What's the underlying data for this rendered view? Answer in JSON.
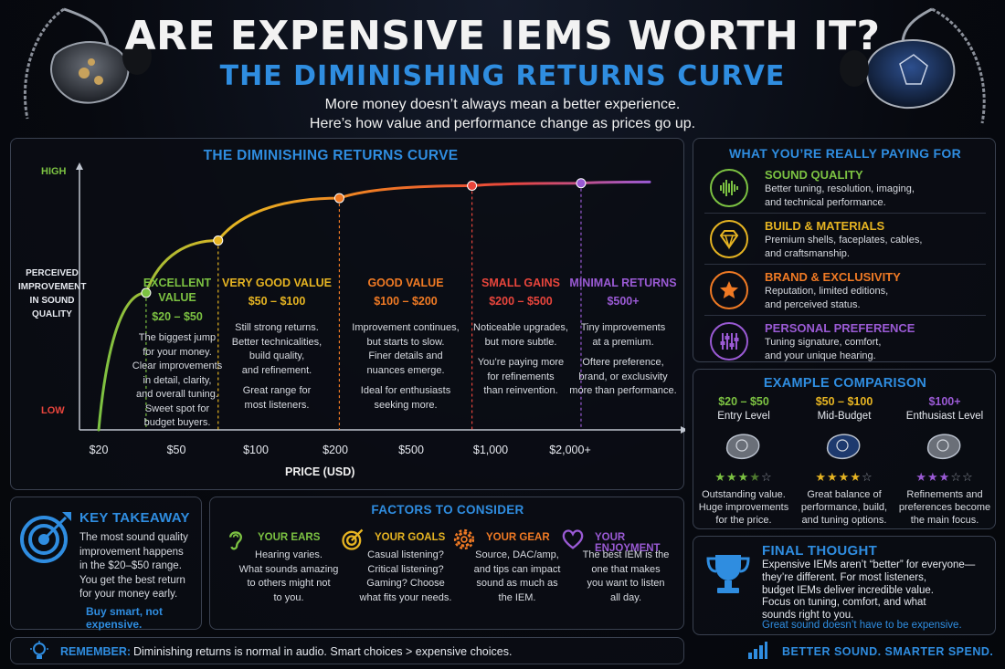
{
  "header": {
    "title": "ARE EXPENSIVE IEMS WORTH IT?",
    "subtitle": "THE DIMINISHING RETURNS CURVE",
    "intro_line1": "More money doesn’t always mean a better experience.",
    "intro_line2": "Here’s how value and performance change as prices go up."
  },
  "chart_data": {
    "type": "line",
    "title": "THE DIMINISHING RETURNS CURVE",
    "xlabel": "PRICE (USD)",
    "ylabel": "PERCEIVED IMPROVEMENT IN SOUND QUALITY",
    "y_axis_labels": {
      "high": "HIGH",
      "low": "LOW"
    },
    "x_tick_labels": [
      "$20",
      "$50",
      "$100",
      "$200",
      "$500",
      "$1,000",
      "$2,000+"
    ],
    "x_scale": "log",
    "series": [
      {
        "points": [
          {
            "x": 20,
            "y": 0
          },
          {
            "x": 35,
            "y": 0.55
          },
          {
            "x": 72,
            "y": 0.76
          },
          {
            "x": 210,
            "y": 0.93
          },
          {
            "x": 850,
            "y": 0.98
          },
          {
            "x": 2200,
            "y": 0.99
          },
          {
            "x": 4000,
            "y": 0.995
          }
        ]
      }
    ],
    "markers": [
      {
        "x": 35,
        "y": 0.55,
        "color": "#7cc242"
      },
      {
        "x": 72,
        "y": 0.76,
        "color": "#e6b422"
      },
      {
        "x": 210,
        "y": 0.93,
        "color": "#f07a24"
      },
      {
        "x": 850,
        "y": 0.98,
        "color": "#e8453c"
      },
      {
        "x": 2200,
        "y": 0.99,
        "color": "#9a5ad4"
      }
    ],
    "segments": [
      {
        "name": "EXCELLENT VALUE",
        "range": "$20 – $50",
        "color": "#7cc242",
        "lines": [
          "The biggest jump",
          "for your money.",
          "Clear improvements",
          "in detail, clarity,",
          "and overall tuning.",
          "Sweet spot for",
          "budget buyers."
        ]
      },
      {
        "name": "VERY GOOD VALUE",
        "range": "$50 – $100",
        "color": "#e6b422",
        "lines": [
          "Still strong returns.",
          "Better technicalities,",
          "build quality,",
          "and refinement.",
          "",
          "Great range for",
          "most listeners."
        ]
      },
      {
        "name": "GOOD VALUE",
        "range": "$100 – $200",
        "color": "#f07a24",
        "lines": [
          "Improvement continues,",
          "but starts to slow.",
          "Finer details and",
          "nuances emerge.",
          "",
          "Ideal for enthusiasts",
          "seeking more."
        ]
      },
      {
        "name": "SMALL GAINS",
        "range": "$200 – $500",
        "color": "#e8453c",
        "lines": [
          "Noticeable upgrades,",
          "but more subtle.",
          "",
          "You’re paying more",
          "for refinements",
          "than reinvention."
        ]
      },
      {
        "name": "MINIMAL RETURNS",
        "range": "$500+",
        "color": "#9a5ad4",
        "lines": [
          "Tiny improvements",
          "at a premium.",
          "",
          "Oftere preference,",
          "brand, or exclusivity",
          "more than performance."
        ]
      }
    ]
  },
  "paying_for": {
    "heading": "WHAT YOU’RE REALLY PAYING FOR",
    "items": [
      {
        "title": "SOUND QUALITY",
        "color": "#7cc242",
        "icon": "soundwave-icon",
        "line1": "Better tuning, resolution, imaging,",
        "line2": "and technical performance."
      },
      {
        "title": "BUILD & MATERIALS",
        "color": "#e6b422",
        "icon": "diamond-icon",
        "line1": "Premium shells, faceplates, cables,",
        "line2": "and craftsmanship."
      },
      {
        "title": "BRAND & EXCLUSIVITY",
        "color": "#f07a24",
        "icon": "star-icon",
        "line1": "Reputation, limited editions,",
        "line2": "and perceived status."
      },
      {
        "title": "PERSONAL PREFERENCE",
        "color": "#9a5ad4",
        "icon": "sliders-icon",
        "line1": "Tuning signature, comfort,",
        "line2": "and your unique hearing."
      }
    ]
  },
  "comparison": {
    "heading": "EXAMPLE COMPARISON",
    "items": [
      {
        "price": "$20 – $50",
        "level": "Entry Level",
        "color": "#7cc242",
        "rating": 3.5,
        "line1": "Outstanding value.",
        "line2": "Huge improvements",
        "line3": "for the price."
      },
      {
        "price": "$50 – $100",
        "level": "Mid-Budget",
        "color": "#e6b422",
        "rating": 4,
        "line1": "Great balance of",
        "line2": "performance, build,",
        "line3": "and tuning options."
      },
      {
        "price": "$100+",
        "level": "Enthusiast Level",
        "color": "#9a5ad4",
        "rating": 3,
        "line1": "Refinements and",
        "line2": "preferences become",
        "line3": "the main focus."
      }
    ]
  },
  "takeaway": {
    "heading": "KEY TAKEAWAY",
    "lines": [
      "The most sound quality",
      "improvement happens",
      "in the $20–$50 range.",
      "You get the best return",
      "for your money early."
    ],
    "tagline": "Buy smart, not expensive."
  },
  "factors": {
    "heading": "FACTORS TO CONSIDER",
    "items": [
      {
        "title": "YOUR EARS",
        "color": "#7cc242",
        "icon": "ear-icon",
        "lines": [
          "Hearing varies.",
          "What sounds amazing",
          "to others might not",
          "to you."
        ]
      },
      {
        "title": "YOUR GOALS",
        "color": "#e6b422",
        "icon": "target-icon",
        "lines": [
          "Casual listening?",
          "Critical listening?",
          "Gaming? Choose",
          "what fits your needs."
        ]
      },
      {
        "title": "YOUR GEAR",
        "color": "#f07a24",
        "icon": "gear-icon",
        "lines": [
          "Source, DAC/amp,",
          "and tips can impact",
          "sound as much as",
          "the IEM."
        ]
      },
      {
        "title": "YOUR ENJOYMENT",
        "color": "#9a5ad4",
        "icon": "heart-icon",
        "lines": [
          "The best IEM is the",
          "one that makes",
          "you want to listen",
          "all day."
        ]
      }
    ]
  },
  "final_thought": {
    "heading": "FINAL THOUGHT",
    "lines": [
      "Expensive IEMs aren’t “better” for everyone—",
      "they’re different. For most listeners,",
      "budget IEMs deliver incredible value.",
      "Focus on tuning, comfort, and what",
      "sounds right to you."
    ],
    "tagline": "Great sound doesn’t have to be expensive."
  },
  "footer": {
    "remember_label": "REMEMBER:",
    "remember_text": "Diminishing returns is normal in audio.  Smart choices > expensive choices.",
    "slogan": "BETTER SOUND. SMARTER SPEND."
  },
  "colors": {
    "accent": "#2f8de0",
    "green": "#7cc242",
    "yellow": "#e6b422",
    "orange": "#f07a24",
    "red": "#e8453c",
    "purple": "#9a5ad4"
  }
}
